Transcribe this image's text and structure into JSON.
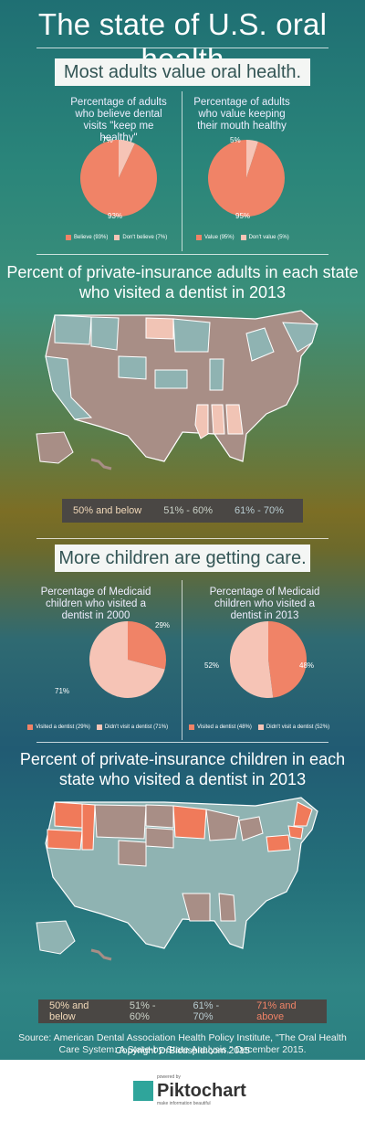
{
  "title": "The state of U.S. oral health",
  "banners": {
    "adults": "Most adults value oral health.",
    "children": "More children are getting care."
  },
  "colors": {
    "salmon": "#f08367",
    "pink": "#f6c4b6",
    "map_low": "#a88e86",
    "map_mid": "#8fb3b2",
    "map_high": "#f1c4b5",
    "map_top": "#f07a5a",
    "key_low": "#f2d9b9",
    "key_mid": "#c9d1c7",
    "key_high": "#b8cbd0",
    "key_top": "#f08367"
  },
  "chart_data": [
    {
      "type": "pie",
      "title": "Percentage of adults who believe dental visits \"keep me healthy\"",
      "categories": [
        "Believe (93%)",
        "Don't believe (7%)"
      ],
      "values": [
        93,
        7
      ],
      "data_labels": [
        "93%",
        "7%"
      ],
      "legend": [
        "Believe (93%)",
        "Don't believe (7%)"
      ]
    },
    {
      "type": "pie",
      "title": "Percentage of adults who value keeping their mouth healthy",
      "categories": [
        "Value (95%)",
        "Don't value (5%)"
      ],
      "values": [
        95,
        5
      ],
      "data_labels": [
        "95%",
        "5%"
      ],
      "legend": [
        "Value (95%)",
        "Don't value (5%)"
      ]
    },
    {
      "type": "pie",
      "title": "Percentage of Medicaid children who visited a dentist in 2000",
      "categories": [
        "Visited a dentist (29%)",
        "Didn't visit a dentist (71%)"
      ],
      "values": [
        29,
        71
      ],
      "data_labels": [
        "29%",
        "71%"
      ],
      "legend": [
        "Visited a dentist (29%)",
        "Didn't visit a dentist (71%)"
      ]
    },
    {
      "type": "pie",
      "title": "Percentage of Medicaid children who visited a dentist in 2013",
      "categories": [
        "Visited a dentist (48%)",
        "Didn't visit a dentist (52%)"
      ],
      "values": [
        48,
        52
      ],
      "data_labels": [
        "48%",
        "52%"
      ],
      "legend": [
        "Visited a dentist (48%)",
        "Didn't visit a dentist (52%)"
      ]
    }
  ],
  "maps": {
    "adults": {
      "title": "Percent of private-insurance adults in each state who visited a dentist in 2013",
      "key": [
        "50% and below",
        "51% - 60%",
        "61% - 70%"
      ]
    },
    "children": {
      "title": "Percent of private-insurance children in each state who visited a dentist in 2013",
      "key": [
        "50% and below",
        "51% - 60%",
        "61% - 70%",
        "71% and above"
      ]
    }
  },
  "source": "Source: American Dental Association Health Policy Institute, \"The Oral Health Care System: A State-by-State Analysis,\" December 2015.",
  "copyright": "Copyright DrBicuspid.com 2015",
  "footer": {
    "powered_by": "powered by",
    "brand": "Piktochart",
    "tagline": "make information beautiful"
  }
}
